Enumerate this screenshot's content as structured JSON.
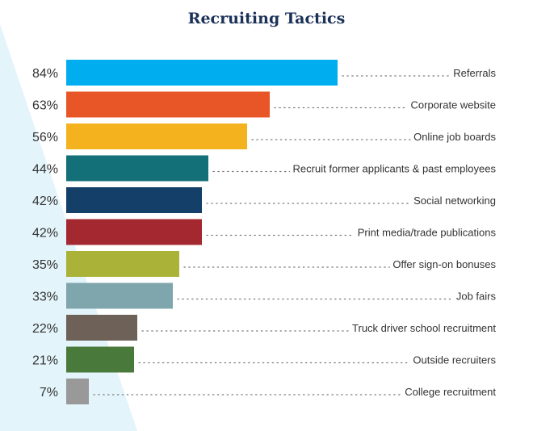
{
  "chart_data": {
    "type": "bar",
    "orientation": "horizontal",
    "title": "Recruiting Tactics",
    "categories": [
      "Referrals",
      "Corporate website",
      "Online job boards",
      "Recruit former applicants & past employees",
      "Social networking",
      "Print media/trade publications",
      "Offer sign-on bonuses",
      "Job fairs",
      "Truck driver school recruitment",
      "Outside recruiters",
      "College recruitment"
    ],
    "values": [
      84,
      63,
      56,
      44,
      42,
      42,
      35,
      33,
      22,
      21,
      7
    ],
    "value_labels": [
      "84%",
      "63%",
      "56%",
      "44%",
      "42%",
      "42%",
      "35%",
      "33%",
      "22%",
      "21%",
      "7%"
    ],
    "unit": "%",
    "colors": [
      "#00aeef",
      "#e85526",
      "#f3b21e",
      "#137078",
      "#143f68",
      "#a3282f",
      "#aab237",
      "#7fa6ad",
      "#6e6258",
      "#497a3b",
      "#999999"
    ],
    "xlim": [
      0,
      100
    ],
    "grid": false,
    "legend": "none"
  },
  "theme": {
    "title_color": "#1b3158",
    "background_accent": "#e3f4fb"
  }
}
